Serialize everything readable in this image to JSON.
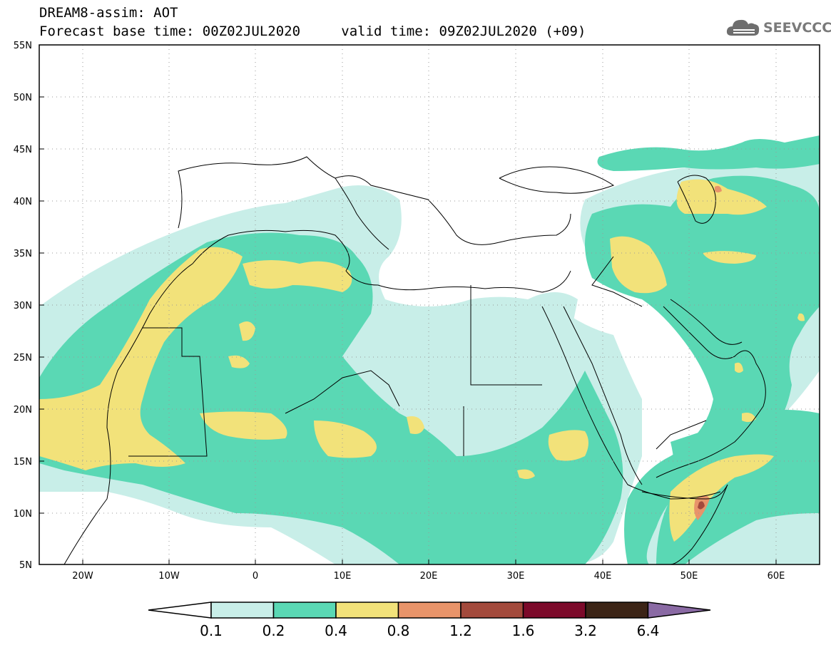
{
  "header": {
    "title_line_1": "DREAM8-assim: AOT",
    "forecast_base_label": "Forecast base time: 00Z02JUL2020",
    "valid_time_label": "valid time: 09Z02JUL2020 (+09)"
  },
  "logo": {
    "text": "SEEVCCC",
    "icon": "cloud-icon"
  },
  "map": {
    "variable": "AOT",
    "lat_ticks": [
      "55N",
      "50N",
      "45N",
      "40N",
      "35N",
      "30N",
      "25N",
      "20N",
      "15N",
      "10N",
      "5N"
    ],
    "lon_ticks": [
      "20W",
      "10W",
      "0",
      "10E",
      "20E",
      "30E",
      "40E",
      "50E",
      "60E"
    ],
    "lat_range": [
      5,
      55
    ],
    "lon_range": [
      -25,
      65
    ]
  },
  "colorbar": {
    "labels": [
      "0.1",
      "0.2",
      "0.4",
      "0.8",
      "1.2",
      "1.6",
      "3.2",
      "6.4"
    ],
    "colors": [
      "#ffffff",
      "#c8eee8",
      "#5ad8b4",
      "#f2e27a",
      "#e8946a",
      "#a34a3c",
      "#7c0a2a",
      "#3c2416",
      "#8a6aa4"
    ]
  },
  "colors": {
    "level_1": "#c8eee8",
    "level_2": "#5ad8b4",
    "level_3": "#f2e27a",
    "level_4": "#e8946a",
    "level_5": "#a34a3c",
    "coastline": "#000000"
  }
}
